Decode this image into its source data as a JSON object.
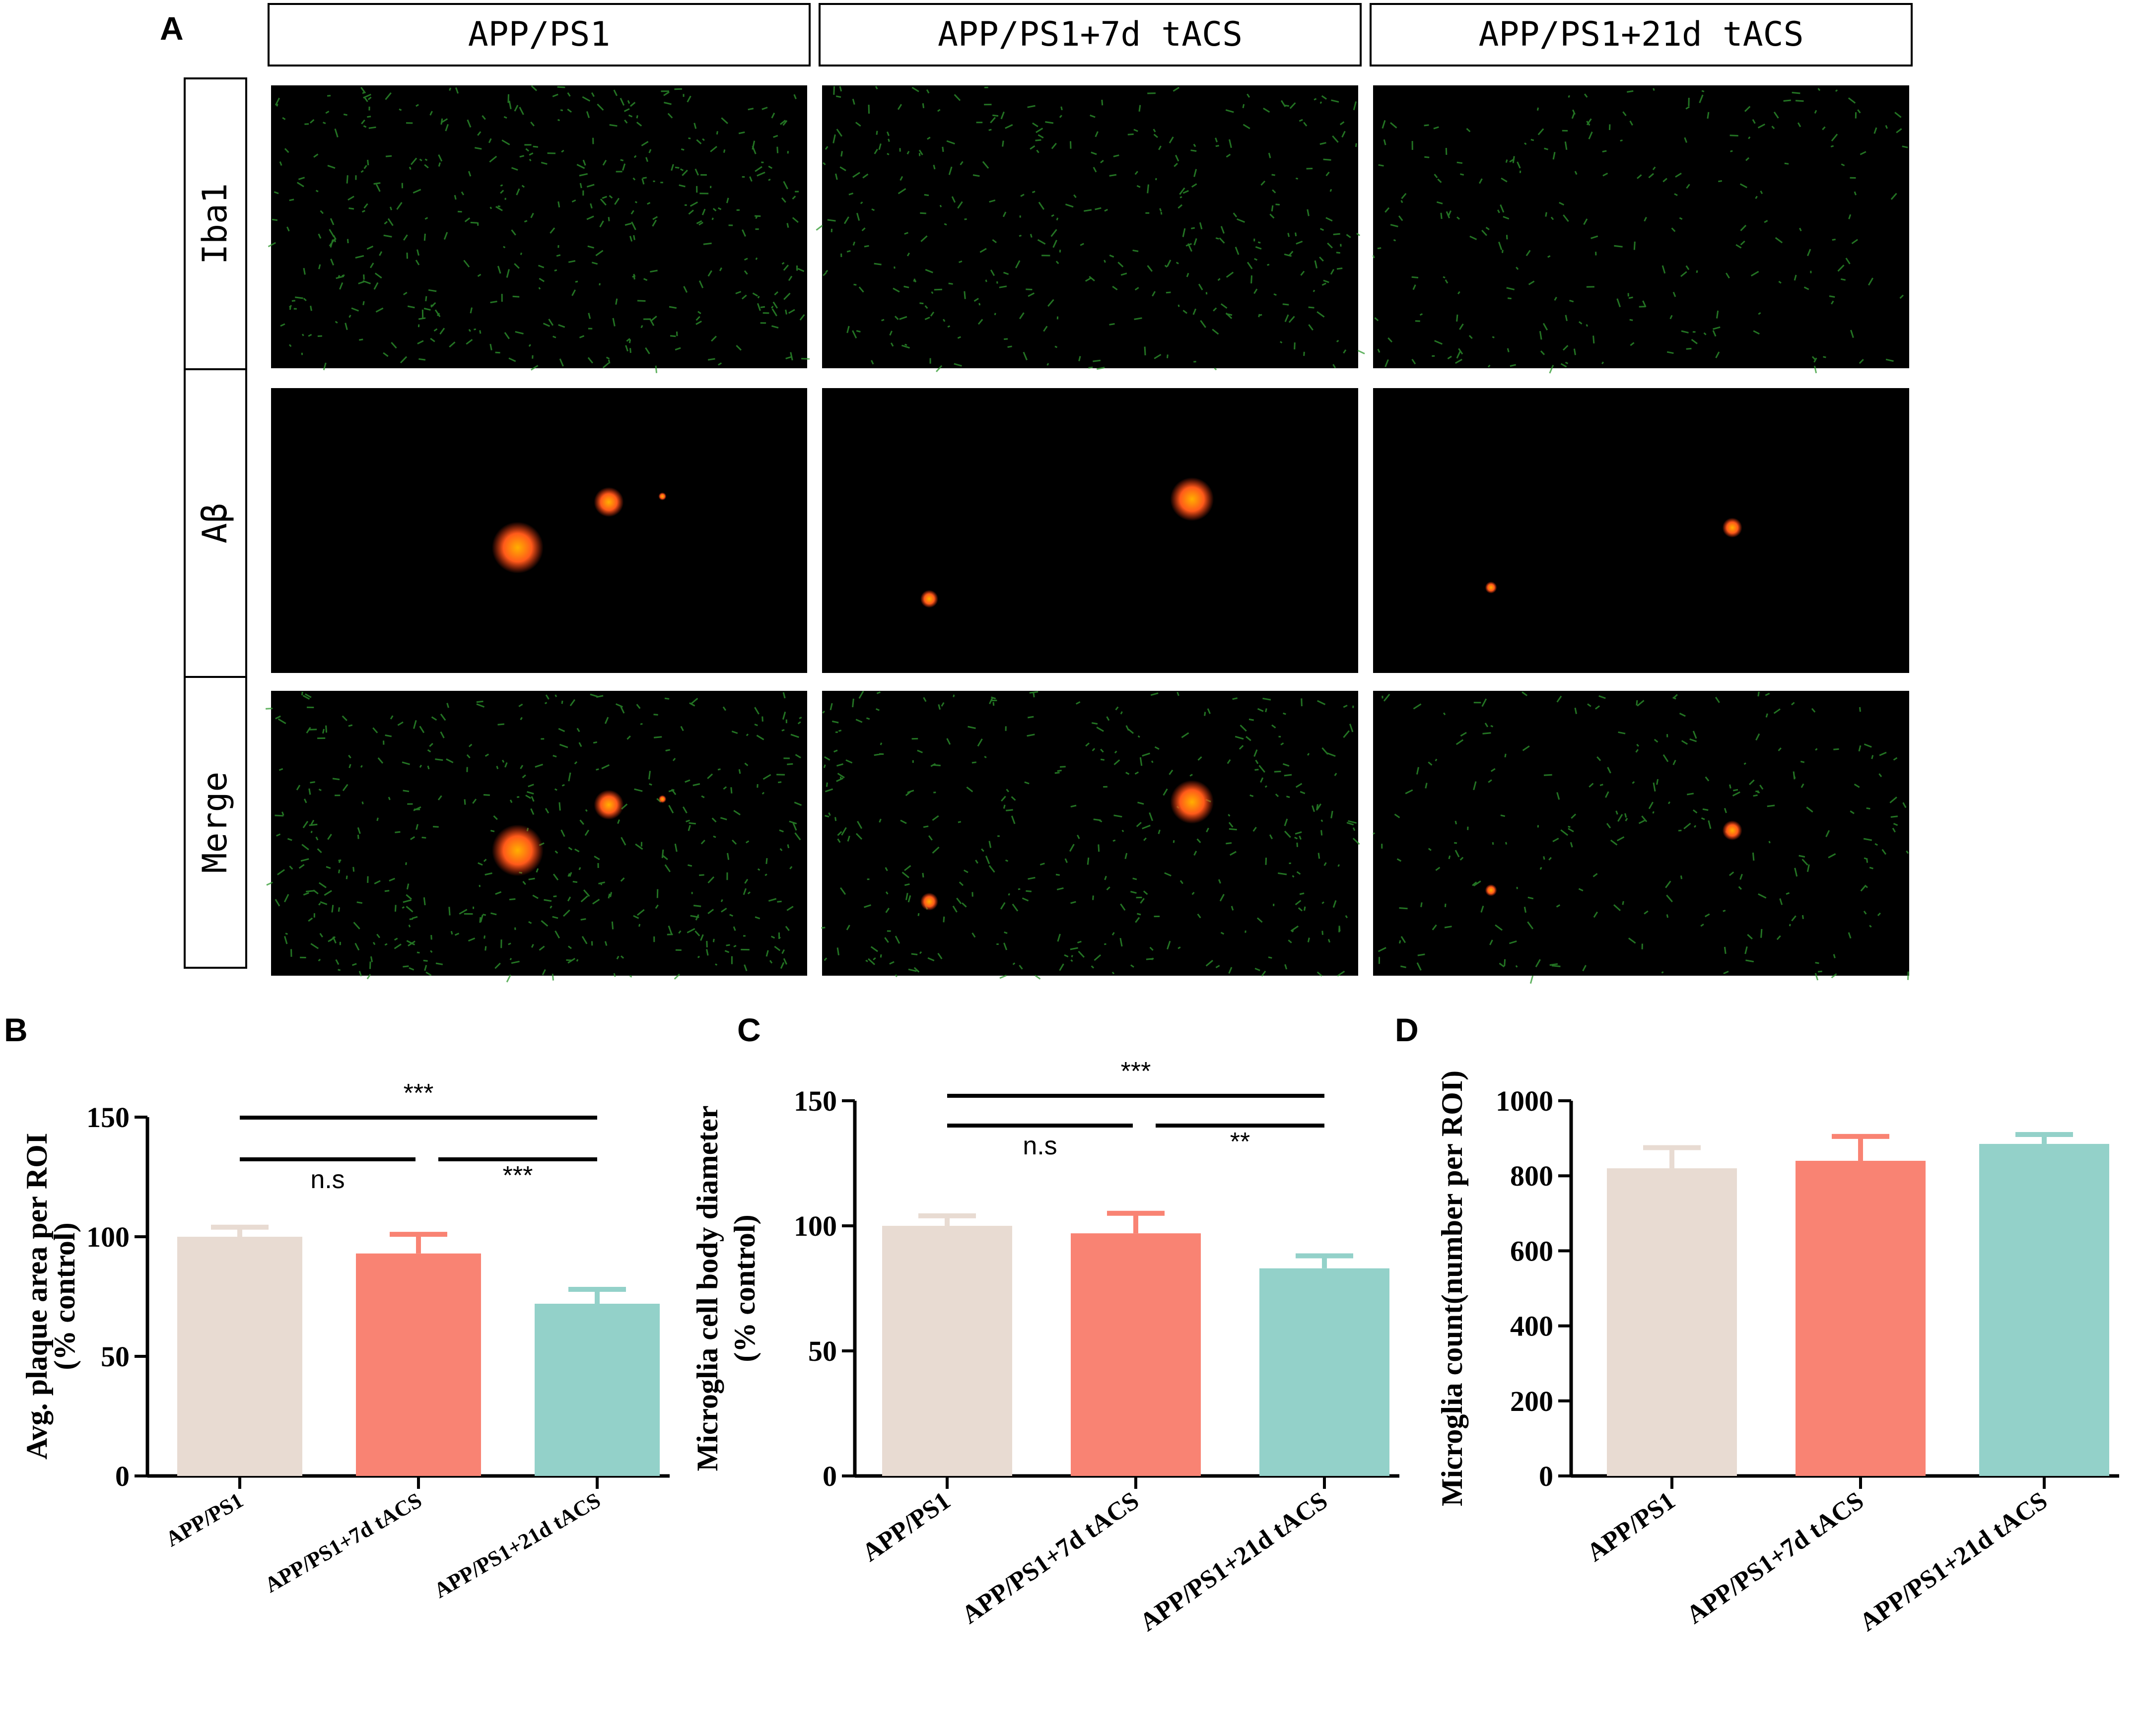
{
  "panel_letters": [
    "A",
    "B",
    "C",
    "D"
  ],
  "panel_a": {
    "column_headers": [
      "APP/PS1",
      "APP/PS1+7d tACS",
      "APP/PS1+21d tACS"
    ],
    "row_labels": [
      "Iba1",
      "Aβ",
      "Merge"
    ],
    "colors": {
      "background": "#000000",
      "iba1_signal": "#2f9a2f",
      "abeta_signal": "#ff4a1a",
      "merge_core": "#ffb000"
    }
  },
  "colors": {
    "APP/PS1": "#e8dbd2",
    "APP/PS1+7d tACS": "#f98373",
    "APP/PS1+21d tACS": "#93d1c9"
  },
  "chart_data": [
    {
      "panel": "B",
      "type": "bar",
      "categories": [
        "APP/PS1",
        "APP/PS1+7d tACS",
        "APP/PS1+21d tACS"
      ],
      "values": [
        100,
        93,
        72
      ],
      "errors": [
        4,
        8,
        6
      ],
      "ylabel_lines": [
        "Avg. plaque area per ROI",
        "(% control)"
      ],
      "ylim": [
        0,
        150
      ],
      "yticks": [
        0,
        50,
        100,
        150
      ],
      "significance": [
        {
          "from": 0,
          "to": 2,
          "label": "***"
        },
        {
          "from": 0,
          "to": 1,
          "label": "n.s"
        },
        {
          "from": 1,
          "to": 2,
          "label": "***"
        }
      ]
    },
    {
      "panel": "C",
      "type": "bar",
      "categories": [
        "APP/PS1",
        "APP/PS1+7d tACS",
        "APP/PS1+21d tACS"
      ],
      "values": [
        100,
        97,
        83
      ],
      "errors": [
        4,
        8,
        5
      ],
      "ylabel_lines": [
        "Microglia cell body diameter",
        "(% control)"
      ],
      "ylim": [
        0,
        150
      ],
      "yticks": [
        0,
        50,
        100,
        150
      ],
      "significance": [
        {
          "from": 0,
          "to": 2,
          "label": "***"
        },
        {
          "from": 0,
          "to": 1,
          "label": "n.s"
        },
        {
          "from": 1,
          "to": 2,
          "label": "**"
        }
      ]
    },
    {
      "panel": "D",
      "type": "bar",
      "categories": [
        "APP/PS1",
        "APP/PS1+7d tACS",
        "APP/PS1+21d tACS"
      ],
      "values": [
        820,
        840,
        885
      ],
      "errors": [
        55,
        65,
        25
      ],
      "ylabel_lines": [
        "Microglia count(number per ROI)"
      ],
      "ylim": [
        0,
        1000
      ],
      "yticks": [
        0,
        200,
        400,
        600,
        800,
        1000
      ],
      "significance": []
    }
  ]
}
